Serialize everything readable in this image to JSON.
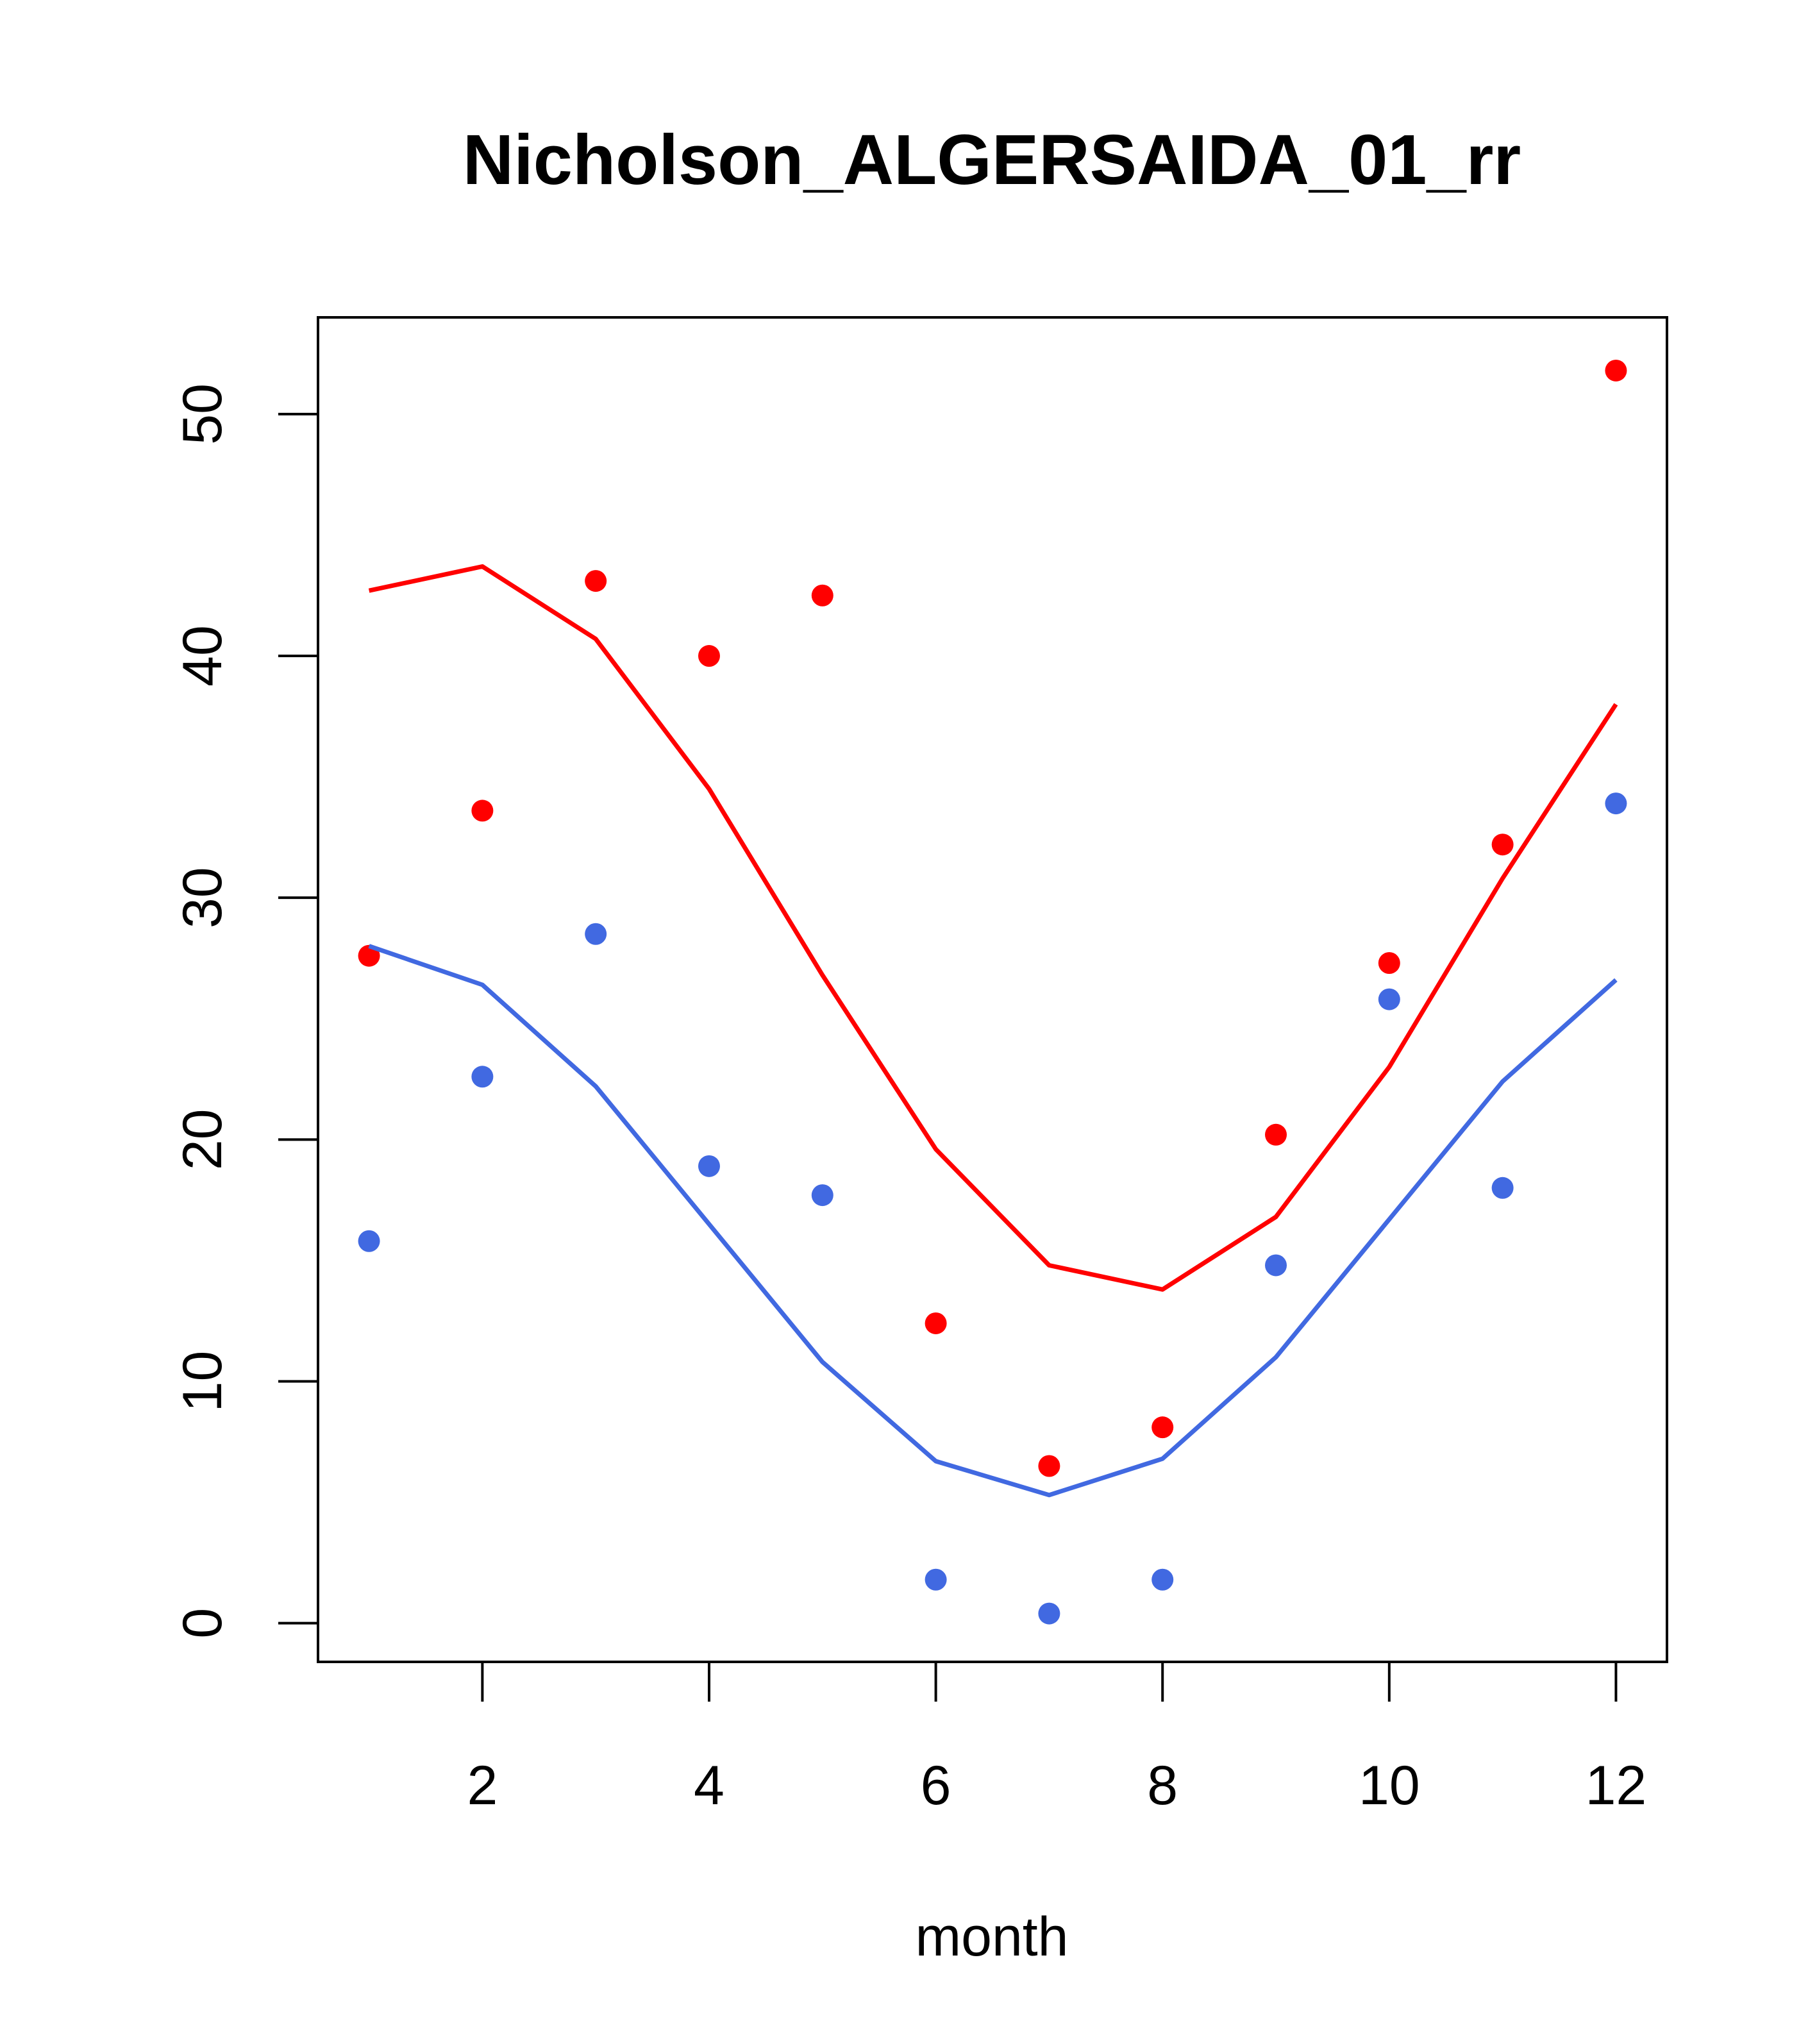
{
  "chart_data": {
    "type": "scatter",
    "title": "Nicholson_ALGERSAIDA_01_rr",
    "xlabel": "month",
    "ylabel": "",
    "xlim": [
      0.55,
      12.45
    ],
    "ylim": [
      -1.6,
      54
    ],
    "xticks": [
      2,
      4,
      6,
      8,
      10,
      12
    ],
    "yticks": [
      0,
      10,
      20,
      30,
      40,
      50
    ],
    "grid": false,
    "legend": "none",
    "series": [
      {
        "kind": "points",
        "color": "#ff0000",
        "x": [
          1,
          2,
          3,
          4,
          5,
          6,
          7,
          8,
          9,
          10,
          11,
          12
        ],
        "y": [
          27.6,
          33.6,
          43.1,
          40.0,
          42.5,
          12.4,
          6.5,
          8.1,
          20.2,
          27.3,
          32.2,
          51.8
        ]
      },
      {
        "kind": "line",
        "color": "#ff0000",
        "x": [
          1,
          2,
          3,
          4,
          5,
          6,
          7,
          8,
          9,
          10,
          11,
          12
        ],
        "y": [
          42.7,
          43.7,
          40.7,
          34.5,
          26.8,
          19.6,
          14.8,
          13.8,
          16.8,
          23.0,
          30.8,
          38.0
        ]
      },
      {
        "kind": "points",
        "color": "#4169e1",
        "x": [
          1,
          2,
          3,
          4,
          5,
          6,
          7,
          8,
          9,
          10,
          11,
          12
        ],
        "y": [
          15.8,
          22.6,
          28.5,
          18.9,
          17.7,
          1.8,
          0.4,
          1.8,
          14.8,
          25.8,
          18.0,
          33.9
        ]
      },
      {
        "kind": "line",
        "color": "#4169e1",
        "x": [
          1,
          2,
          3,
          4,
          5,
          6,
          7,
          8,
          9,
          10,
          11,
          12
        ],
        "y": [
          28.0,
          26.4,
          22.2,
          16.5,
          10.8,
          6.7,
          5.3,
          6.8,
          11.0,
          16.7,
          22.4,
          26.6
        ]
      }
    ]
  }
}
